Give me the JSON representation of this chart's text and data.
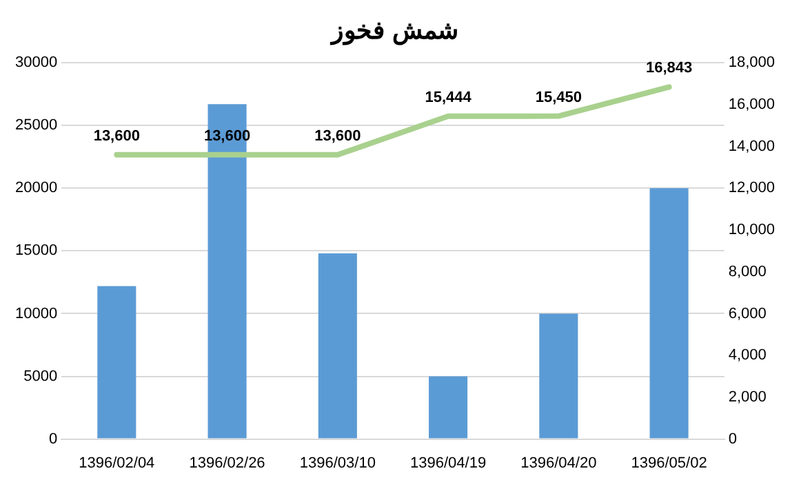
{
  "chart_data": {
    "type": "bar",
    "title": "شمش فخوز",
    "categories": [
      "1396/02/04",
      "1396/02/26",
      "1396/03/10",
      "1396/04/19",
      "1396/04/20",
      "1396/05/02"
    ],
    "series": [
      {
        "color": "#5b9bd5",
        "values": [
          12200,
          26700,
          14800,
          5000,
          10000,
          20000
        ]
      },
      {
        "type": "line",
        "axis": "y2",
        "color": "#a9d18e",
        "values": [
          13600,
          13600,
          13600,
          15444,
          15450,
          16843
        ],
        "value_labels": [
          "13,600",
          "13,600",
          "13,600",
          "15,444",
          "15,450",
          "16,843"
        ]
      }
    ],
    "ylim": [
      0,
      30000
    ],
    "yticks": [
      0,
      5000,
      10000,
      15000,
      20000,
      25000,
      30000
    ],
    "y2lim": [
      0,
      18000
    ],
    "y2ticks": [
      {
        "value": 0,
        "label": "0"
      },
      {
        "value": 2000,
        "label": "2,000"
      },
      {
        "value": 4000,
        "label": "4,000"
      },
      {
        "value": 6000,
        "label": "6,000"
      },
      {
        "value": 8000,
        "label": "8,000"
      },
      {
        "value": 10000,
        "label": "10,000"
      },
      {
        "value": 12000,
        "label": "12,000"
      },
      {
        "value": 14000,
        "label": "14,000"
      },
      {
        "value": 16000,
        "label": "16,000"
      },
      {
        "value": 18000,
        "label": "18,000"
      }
    ],
    "grid": "y",
    "legend": false,
    "marker": "none"
  }
}
